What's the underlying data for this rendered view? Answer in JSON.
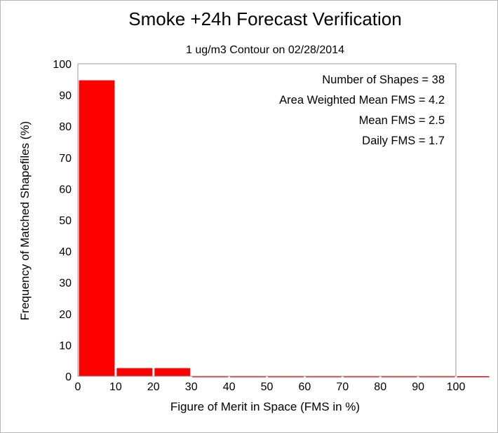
{
  "chart_data": {
    "type": "bar",
    "title": "Smoke +24h Forecast Verification",
    "subtitle": "1 ug/m3 Contour on 02/28/2014",
    "xlabel": "Figure of Merit in Space (FMS in %)",
    "ylabel": "Frequency of Matched Shapefiles (%)",
    "bins": [
      {
        "start": 0,
        "end": 10,
        "value": 94.7
      },
      {
        "start": 10,
        "end": 20,
        "value": 2.6
      },
      {
        "start": 20,
        "end": 30,
        "value": 2.6
      },
      {
        "start": 30,
        "end": 40,
        "value": 0
      },
      {
        "start": 40,
        "end": 50,
        "value": 0
      },
      {
        "start": 50,
        "end": 60,
        "value": 0
      },
      {
        "start": 60,
        "end": 70,
        "value": 0
      },
      {
        "start": 70,
        "end": 80,
        "value": 0
      },
      {
        "start": 80,
        "end": 90,
        "value": 0
      },
      {
        "start": 90,
        "end": 100,
        "value": 0
      },
      {
        "start": 100,
        "end": 110,
        "value": 0
      }
    ],
    "xlim": [
      0,
      100
    ],
    "ylim": [
      0,
      100
    ],
    "xticks": [
      0,
      10,
      20,
      30,
      40,
      50,
      60,
      70,
      80,
      90,
      100
    ],
    "yticks": [
      0,
      10,
      20,
      30,
      40,
      50,
      60,
      70,
      80,
      90,
      100
    ],
    "bar_color": "#ff0000",
    "grid": false,
    "stats": [
      "Number of Shapes = 38",
      "Area Weighted Mean FMS = 4.2",
      "Mean FMS = 2.5",
      "Daily FMS = 1.7"
    ]
  }
}
